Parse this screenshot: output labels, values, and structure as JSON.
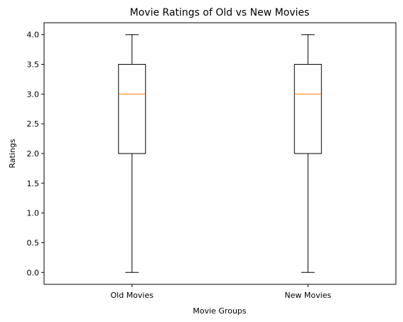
{
  "chart_data": {
    "type": "box",
    "title": "Movie Ratings of Old vs New Movies",
    "xlabel": "Movie Groups",
    "ylabel": "Ratings",
    "categories": [
      "Old Movies",
      "New Movies"
    ],
    "boxes": [
      {
        "name": "Old Movies",
        "min": 0.0,
        "q1": 2.0,
        "median": 3.0,
        "q3": 3.5,
        "max": 4.0
      },
      {
        "name": "New Movies",
        "min": 0.0,
        "q1": 2.0,
        "median": 3.0,
        "q3": 3.5,
        "max": 4.0
      }
    ],
    "ylim": [
      -0.2,
      4.2
    ],
    "yticks": [
      0.0,
      0.5,
      1.0,
      1.5,
      2.0,
      2.5,
      3.0,
      3.5,
      4.0
    ],
    "ytick_labels": [
      "0.0",
      "0.5",
      "1.0",
      "1.5",
      "2.0",
      "2.5",
      "3.0",
      "3.5",
      "4.0"
    ],
    "grid": false,
    "colors": {
      "box": "#000000",
      "median": "#ff7f0e",
      "whisker": "#000000"
    }
  }
}
